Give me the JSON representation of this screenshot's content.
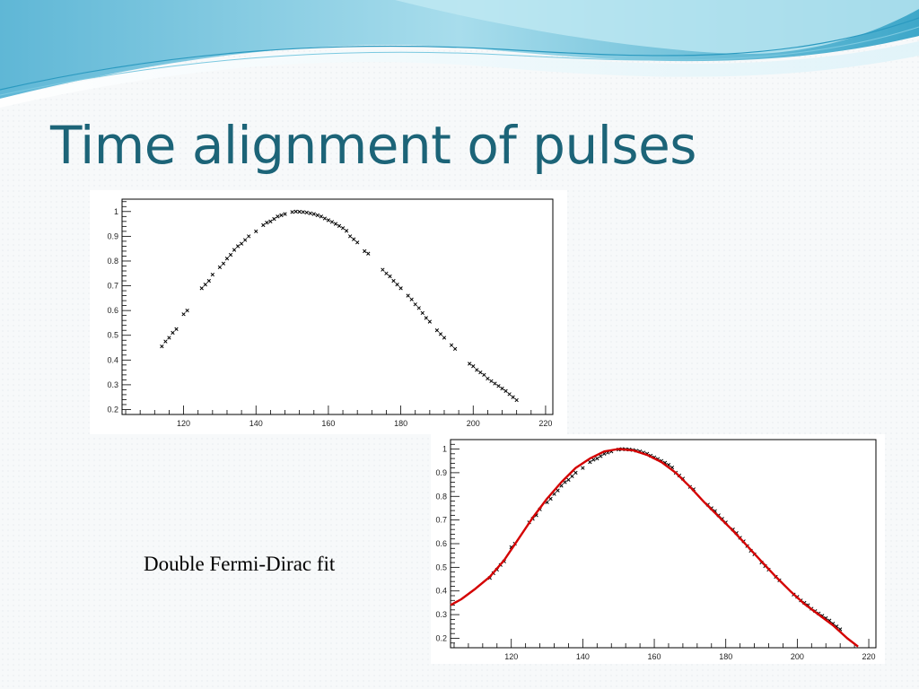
{
  "slide": {
    "title": "Time alignment of pulses",
    "caption": "Double Fermi-Dirac fit"
  },
  "colors": {
    "title": "#1c6478",
    "fit_curve": "#d40000",
    "markers": "#000000",
    "wave_light": "#a8ddec",
    "wave_dark": "#3ea7c9"
  },
  "chart_data": [
    {
      "type": "scatter",
      "title": "",
      "xlabel": "",
      "ylabel": "",
      "xlim": [
        103,
        222
      ],
      "ylim": [
        0.18,
        1.05
      ],
      "x_ticks": [
        120,
        140,
        160,
        180,
        200,
        220
      ],
      "y_ticks": [
        0.2,
        0.3,
        0.4,
        0.5,
        0.6,
        0.7,
        0.8,
        0.9,
        1
      ],
      "grid": false,
      "series": [
        {
          "marker": "x",
          "points": [
            [
              114,
              0.455
            ],
            [
              115,
              0.475
            ],
            [
              116,
              0.49
            ],
            [
              117,
              0.51
            ],
            [
              118,
              0.525
            ],
            [
              120,
              0.585
            ],
            [
              121,
              0.6
            ],
            [
              125,
              0.69
            ],
            [
              126,
              0.705
            ],
            [
              127,
              0.72
            ],
            [
              128,
              0.745
            ],
            [
              130,
              0.775
            ],
            [
              131,
              0.79
            ],
            [
              132,
              0.81
            ],
            [
              133,
              0.825
            ],
            [
              134,
              0.845
            ],
            [
              135,
              0.86
            ],
            [
              136,
              0.87
            ],
            [
              137,
              0.885
            ],
            [
              138,
              0.9
            ],
            [
              140,
              0.92
            ],
            [
              142,
              0.945
            ],
            [
              143,
              0.955
            ],
            [
              144,
              0.96
            ],
            [
              145,
              0.97
            ],
            [
              146,
              0.98
            ],
            [
              147,
              0.985
            ],
            [
              148,
              0.99
            ],
            [
              150,
              0.998
            ],
            [
              151,
              1.0
            ],
            [
              152,
              0.999
            ],
            [
              153,
              0.998
            ],
            [
              154,
              0.996
            ],
            [
              155,
              0.993
            ],
            [
              156,
              0.99
            ],
            [
              157,
              0.985
            ],
            [
              158,
              0.98
            ],
            [
              159,
              0.972
            ],
            [
              160,
              0.965
            ],
            [
              161,
              0.958
            ],
            [
              162,
              0.95
            ],
            [
              163,
              0.942
            ],
            [
              164,
              0.933
            ],
            [
              165,
              0.922
            ],
            [
              166,
              0.9
            ],
            [
              167,
              0.888
            ],
            [
              168,
              0.875
            ],
            [
              170,
              0.84
            ],
            [
              171,
              0.83
            ],
            [
              175,
              0.765
            ],
            [
              176,
              0.75
            ],
            [
              177,
              0.738
            ],
            [
              178,
              0.72
            ],
            [
              179,
              0.705
            ],
            [
              180,
              0.69
            ],
            [
              182,
              0.66
            ],
            [
              183,
              0.645
            ],
            [
              184,
              0.625
            ],
            [
              185,
              0.61
            ],
            [
              186,
              0.59
            ],
            [
              187,
              0.57
            ],
            [
              188,
              0.555
            ],
            [
              190,
              0.52
            ],
            [
              191,
              0.505
            ],
            [
              192,
              0.49
            ],
            [
              194,
              0.46
            ],
            [
              195,
              0.445
            ],
            [
              199,
              0.385
            ],
            [
              200,
              0.375
            ],
            [
              201,
              0.36
            ],
            [
              202,
              0.35
            ],
            [
              203,
              0.34
            ],
            [
              204,
              0.325
            ],
            [
              205,
              0.315
            ],
            [
              206,
              0.305
            ],
            [
              207,
              0.295
            ],
            [
              208,
              0.285
            ],
            [
              209,
              0.275
            ],
            [
              210,
              0.262
            ],
            [
              211,
              0.25
            ],
            [
              212,
              0.238
            ]
          ]
        }
      ]
    },
    {
      "type": "scatter",
      "title": "",
      "xlabel": "",
      "ylabel": "",
      "xlim": [
        103,
        222
      ],
      "ylim": [
        0.16,
        1.04
      ],
      "x_ticks": [
        120,
        140,
        160,
        180,
        200,
        220
      ],
      "y_ticks": [
        0.2,
        0.3,
        0.4,
        0.5,
        0.6,
        0.7,
        0.8,
        0.9,
        1
      ],
      "grid": false,
      "series": [
        {
          "marker": "x",
          "points": [
            [
              114,
              0.455
            ],
            [
              115,
              0.475
            ],
            [
              116,
              0.49
            ],
            [
              117,
              0.51
            ],
            [
              118,
              0.525
            ],
            [
              120,
              0.585
            ],
            [
              121,
              0.6
            ],
            [
              125,
              0.69
            ],
            [
              126,
              0.705
            ],
            [
              127,
              0.72
            ],
            [
              128,
              0.745
            ],
            [
              130,
              0.775
            ],
            [
              131,
              0.79
            ],
            [
              132,
              0.81
            ],
            [
              133,
              0.825
            ],
            [
              134,
              0.845
            ],
            [
              135,
              0.86
            ],
            [
              136,
              0.87
            ],
            [
              137,
              0.885
            ],
            [
              138,
              0.9
            ],
            [
              140,
              0.92
            ],
            [
              142,
              0.945
            ],
            [
              143,
              0.955
            ],
            [
              144,
              0.96
            ],
            [
              145,
              0.97
            ],
            [
              146,
              0.98
            ],
            [
              147,
              0.985
            ],
            [
              148,
              0.99
            ],
            [
              150,
              0.998
            ],
            [
              151,
              1.0
            ],
            [
              152,
              0.999
            ],
            [
              153,
              0.998
            ],
            [
              154,
              0.996
            ],
            [
              155,
              0.993
            ],
            [
              156,
              0.99
            ],
            [
              157,
              0.985
            ],
            [
              158,
              0.98
            ],
            [
              159,
              0.972
            ],
            [
              160,
              0.965
            ],
            [
              161,
              0.958
            ],
            [
              162,
              0.95
            ],
            [
              163,
              0.942
            ],
            [
              164,
              0.933
            ],
            [
              165,
              0.922
            ],
            [
              166,
              0.9
            ],
            [
              167,
              0.888
            ],
            [
              168,
              0.875
            ],
            [
              170,
              0.84
            ],
            [
              171,
              0.83
            ],
            [
              175,
              0.765
            ],
            [
              176,
              0.75
            ],
            [
              177,
              0.738
            ],
            [
              178,
              0.72
            ],
            [
              179,
              0.705
            ],
            [
              180,
              0.69
            ],
            [
              182,
              0.66
            ],
            [
              183,
              0.645
            ],
            [
              184,
              0.625
            ],
            [
              185,
              0.61
            ],
            [
              186,
              0.59
            ],
            [
              187,
              0.57
            ],
            [
              188,
              0.555
            ],
            [
              190,
              0.52
            ],
            [
              191,
              0.505
            ],
            [
              192,
              0.49
            ],
            [
              194,
              0.46
            ],
            [
              195,
              0.445
            ],
            [
              199,
              0.385
            ],
            [
              200,
              0.375
            ],
            [
              201,
              0.36
            ],
            [
              202,
              0.35
            ],
            [
              203,
              0.34
            ],
            [
              204,
              0.325
            ],
            [
              205,
              0.315
            ],
            [
              206,
              0.305
            ],
            [
              207,
              0.295
            ],
            [
              208,
              0.285
            ],
            [
              209,
              0.275
            ],
            [
              210,
              0.262
            ],
            [
              211,
              0.25
            ],
            [
              212,
              0.238
            ]
          ]
        },
        {
          "type": "line",
          "color": "#d40000",
          "points": [
            [
              103,
              0.34
            ],
            [
              106,
              0.365
            ],
            [
              110,
              0.41
            ],
            [
              114,
              0.46
            ],
            [
              118,
              0.53
            ],
            [
              122,
              0.62
            ],
            [
              126,
              0.71
            ],
            [
              130,
              0.79
            ],
            [
              134,
              0.86
            ],
            [
              138,
              0.92
            ],
            [
              142,
              0.96
            ],
            [
              146,
              0.99
            ],
            [
              150,
              1.0
            ],
            [
              154,
              0.995
            ],
            [
              158,
              0.975
            ],
            [
              162,
              0.945
            ],
            [
              166,
              0.9
            ],
            [
              170,
              0.84
            ],
            [
              174,
              0.775
            ],
            [
              178,
              0.715
            ],
            [
              182,
              0.655
            ],
            [
              186,
              0.59
            ],
            [
              190,
              0.525
            ],
            [
              194,
              0.46
            ],
            [
              198,
              0.4
            ],
            [
              202,
              0.345
            ],
            [
              206,
              0.3
            ],
            [
              210,
              0.255
            ],
            [
              214,
              0.2
            ],
            [
              217,
              0.165
            ]
          ]
        }
      ]
    }
  ]
}
